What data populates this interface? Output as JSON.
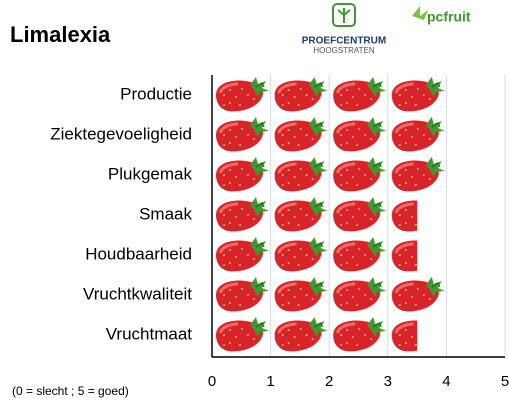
{
  "chart_data": {
    "type": "pictograph",
    "title": "Limalexia",
    "logos": {
      "center_top": "PROEFCENTRUM",
      "center_bottom": "HOOGSTRATEN",
      "fruit": "pcfruit"
    },
    "note": "(0 = slecht  ; 5 = goed)",
    "categories": [
      "Productie",
      "Ziektegevoeligheid",
      "Plukgemak",
      "Smaak",
      "Houdbaarheid",
      "Vruchtkwaliteit",
      "Vruchtmaat"
    ],
    "values": [
      4,
      4,
      4,
      3.5,
      3.5,
      4,
      3.5
    ],
    "xlim": [
      0,
      5
    ],
    "xticks": [
      0,
      1,
      2,
      3,
      4,
      5
    ],
    "grid": true
  }
}
